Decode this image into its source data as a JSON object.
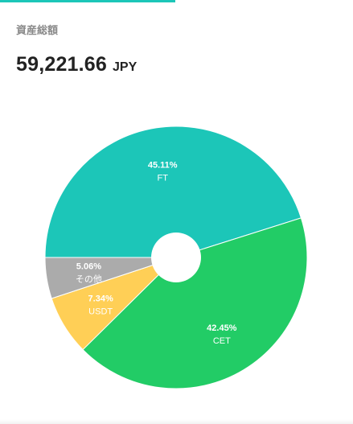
{
  "header": {
    "label": "資産総額",
    "amount": "59,221.66",
    "currency": "JPY"
  },
  "chart_data": {
    "type": "pie",
    "donut": true,
    "start_direction": "left",
    "slices": [
      {
        "name": "FT",
        "value": 45.11,
        "label": "45.11%",
        "color": "#1cc6b8"
      },
      {
        "name": "CET",
        "value": 42.45,
        "label": "42.45%",
        "color": "#22cc66"
      },
      {
        "name": "USDT",
        "value": 7.34,
        "label": "7.34%",
        "color": "#ffcf56"
      },
      {
        "name": "その他",
        "value": 5.06,
        "label": "5.06%",
        "color": "#ababab"
      }
    ]
  }
}
